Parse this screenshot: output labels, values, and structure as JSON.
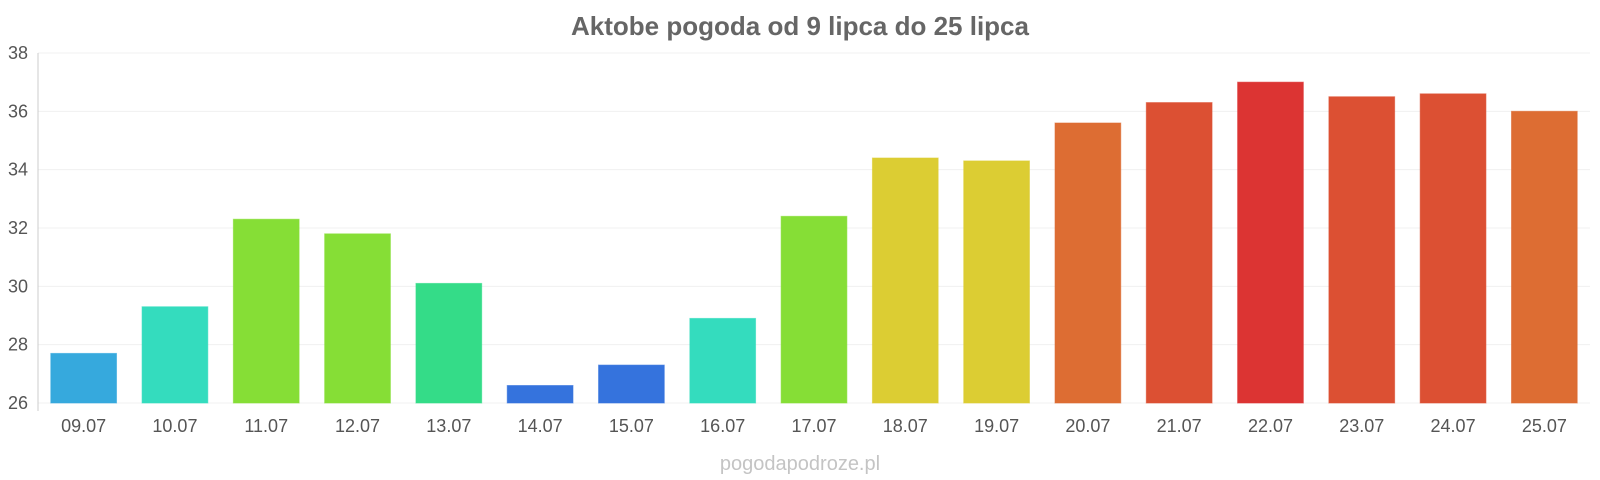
{
  "chart_data": {
    "type": "bar",
    "title": "Aktobe pogoda od 9 lipca do 25 lipca",
    "xlabel": "",
    "ylabel": "",
    "ylim": [
      26,
      38
    ],
    "yticks": [
      "26",
      "28",
      "30",
      "32",
      "34",
      "36",
      "38"
    ],
    "categories": [
      "09.07",
      "10.07",
      "11.07",
      "12.07",
      "13.07",
      "14.07",
      "15.07",
      "16.07",
      "17.07",
      "18.07",
      "19.07",
      "20.07",
      "21.07",
      "22.07",
      "23.07",
      "24.07",
      "25.07"
    ],
    "values": [
      27.7,
      29.3,
      32.3,
      31.8,
      30.1,
      26.6,
      27.3,
      28.9,
      32.4,
      34.4,
      34.3,
      35.6,
      36.3,
      37.0,
      36.5,
      36.6,
      36.0
    ],
    "bar_colors": [
      "#36a9dd",
      "#34dcbe",
      "#86de36",
      "#86de36",
      "#34dc88",
      "#3573dd",
      "#3573dd",
      "#34dcbe",
      "#86de36",
      "#dccd33",
      "#dccd33",
      "#dd6d33",
      "#dc5033",
      "#dc3433",
      "#dc5033",
      "#dc5033",
      "#dd6d33"
    ],
    "grid": true,
    "legend": "none"
  },
  "watermark": "pogodapodroze.pl"
}
